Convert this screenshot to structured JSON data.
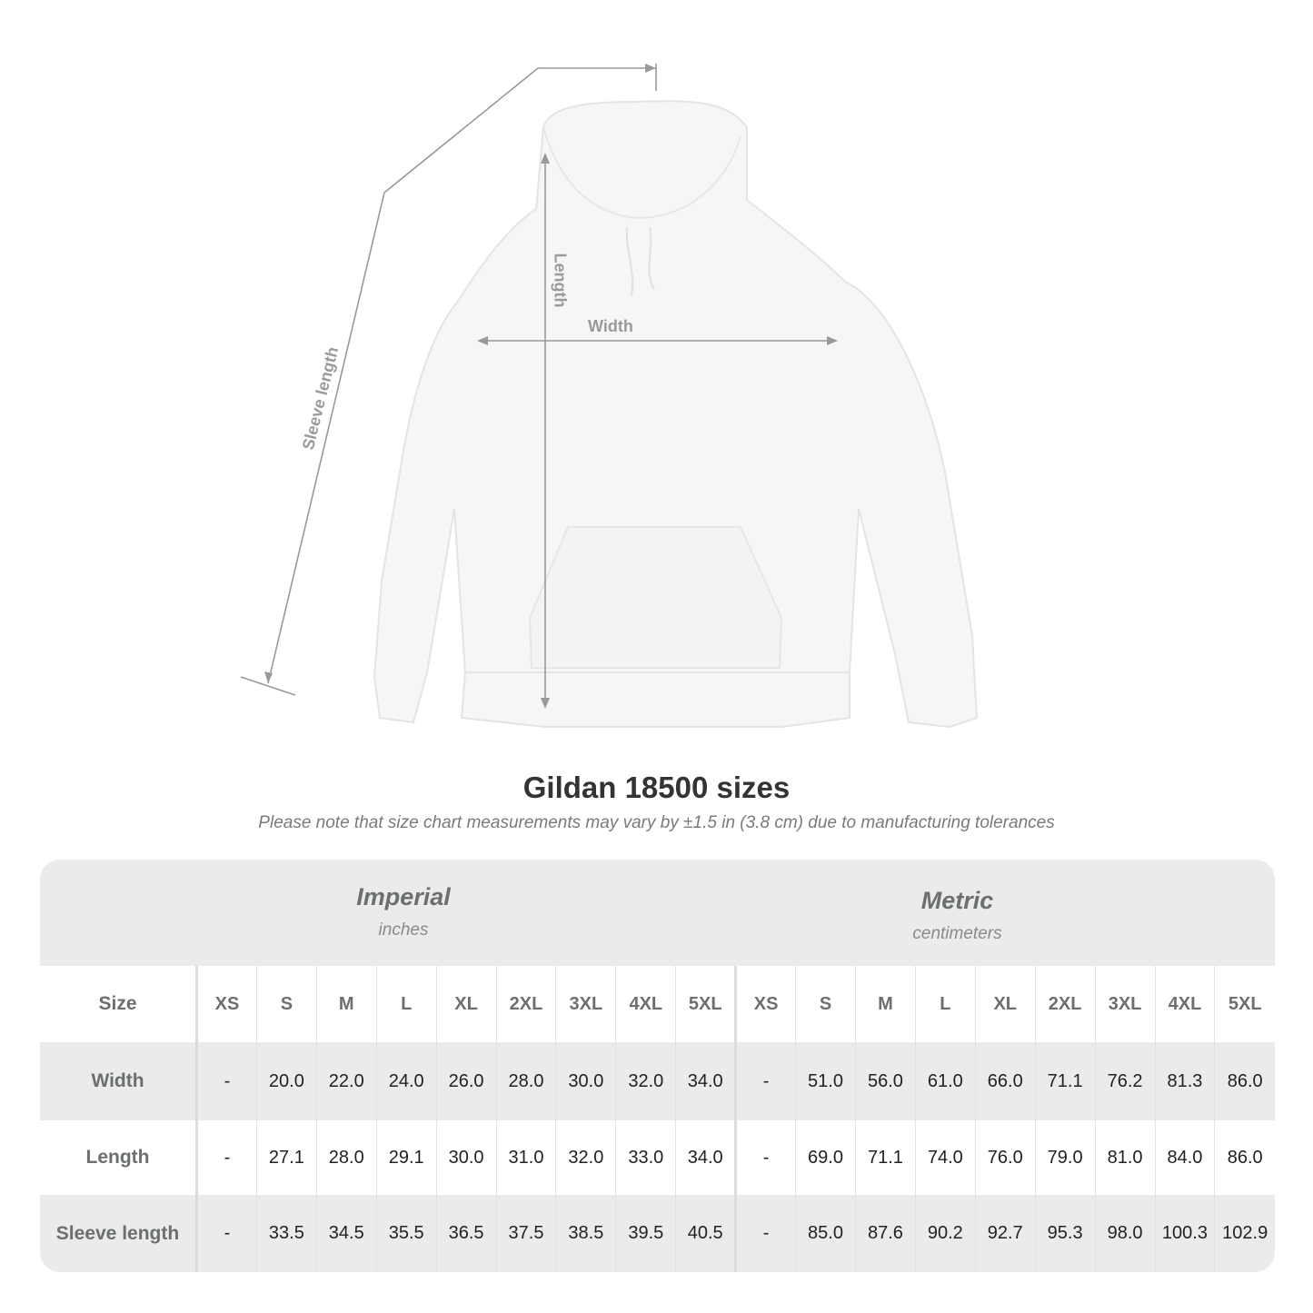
{
  "diagram": {
    "labels": {
      "length": "Length",
      "width": "Width",
      "sleeve": "Sleeve length"
    },
    "line_color": "#999999"
  },
  "title": "Gildan 18500 sizes",
  "subtitle": "Please note that size chart measurements may vary by ±1.5 in (3.8 cm) due to manufacturing tolerances",
  "table": {
    "imperial": {
      "name": "Imperial",
      "unit": "inches"
    },
    "metric": {
      "name": "Metric",
      "unit": "centimeters"
    },
    "size_label": "Size",
    "sizes": [
      "XS",
      "S",
      "M",
      "L",
      "XL",
      "2XL",
      "3XL",
      "4XL",
      "5XL"
    ],
    "rows": [
      {
        "label": "Width",
        "imperial": [
          "-",
          "20.0",
          "22.0",
          "24.0",
          "26.0",
          "28.0",
          "30.0",
          "32.0",
          "34.0"
        ],
        "metric": [
          "-",
          "51.0",
          "56.0",
          "61.0",
          "66.0",
          "71.1",
          "76.2",
          "81.3",
          "86.0"
        ]
      },
      {
        "label": "Length",
        "imperial": [
          "-",
          "27.1",
          "28.0",
          "29.1",
          "30.0",
          "31.0",
          "32.0",
          "33.0",
          "34.0"
        ],
        "metric": [
          "-",
          "69.0",
          "71.1",
          "74.0",
          "76.0",
          "79.0",
          "81.0",
          "84.0",
          "86.0"
        ]
      },
      {
        "label": "Sleeve length",
        "imperial": [
          "-",
          "33.5",
          "34.5",
          "35.5",
          "36.5",
          "37.5",
          "38.5",
          "39.5",
          "40.5"
        ],
        "metric": [
          "-",
          "85.0",
          "87.6",
          "90.2",
          "92.7",
          "95.3",
          "98.0",
          "100.3",
          "102.9"
        ]
      }
    ]
  }
}
